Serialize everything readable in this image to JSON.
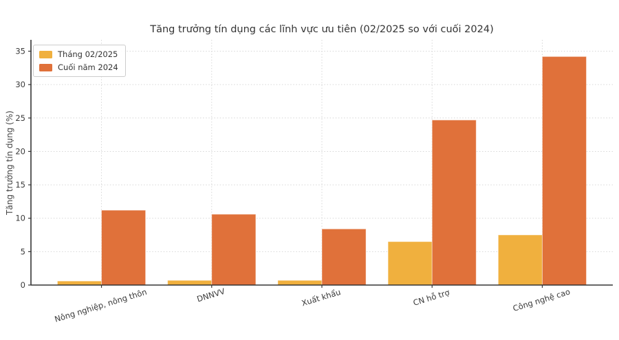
{
  "chart_data": {
    "type": "bar",
    "title": "Tăng trưởng tín dụng các lĩnh vực ưu tiên (02/2025 so với cuối 2024)",
    "xlabel": "",
    "ylabel": "Tăng trưởng tín dụng (%)",
    "categories": [
      "Nông nghiệp, nông thôn",
      "DNNVV",
      "Xuất khẩu",
      "CN hỗ trợ",
      "Công nghệ cao"
    ],
    "series": [
      {
        "name": "Tháng 02/2025",
        "color": "#F0B03E",
        "values": [
          0.6,
          0.7,
          0.7,
          6.5,
          7.5
        ]
      },
      {
        "name": "Cuối năm 2024",
        "color": "#E0713A",
        "values": [
          11.2,
          10.6,
          8.4,
          24.7,
          34.2
        ]
      }
    ],
    "ylim": [
      0,
      36.7
    ],
    "yticks": [
      0,
      5,
      10,
      15,
      20,
      25,
      30,
      35
    ],
    "grid": true,
    "grid_color": "#d6d6d6",
    "spine_color": "#333333",
    "tick_label_color": "#3a3a3a",
    "legend_position": "upper-left",
    "xtick_rotation_deg": 17
  }
}
